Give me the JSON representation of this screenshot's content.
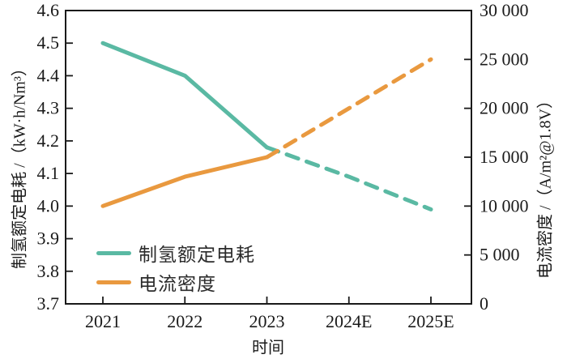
{
  "chart_data": {
    "type": "line",
    "title": "",
    "xlabel": "时间",
    "ylabel_left": "制氢额定电耗 /（kW·h/Nm³）",
    "ylabel_right": "电流密度 /（A/m²@1.8V）",
    "categories": [
      "2021",
      "2022",
      "2023",
      "2024E",
      "2025E"
    ],
    "left_axis": {
      "min": 3.7,
      "max": 4.6,
      "tick_labels": [
        "3.7",
        "3.8",
        "3.9",
        "4.0",
        "4.1",
        "4.2",
        "4.3",
        "4.4",
        "4.5",
        "4.6"
      ]
    },
    "right_axis": {
      "min": 0,
      "max": 30000,
      "tick_labels": [
        "0",
        "5 000",
        "10 000",
        "15 000",
        "20 000",
        "25 000",
        "30 000"
      ]
    },
    "series": [
      {
        "name": "制氢额定电耗",
        "axis": "left",
        "color": "#5ab9a3",
        "values": [
          4.5,
          4.4,
          4.18,
          4.09,
          3.99
        ],
        "dashed_from_index": 2
      },
      {
        "name": "电流密度",
        "axis": "right",
        "color": "#e9993f",
        "values": [
          10000,
          13000,
          15000,
          20000,
          25000
        ],
        "dashed_from_index": 2
      }
    ],
    "legend_position": "lower-left-inside",
    "grid": false
  }
}
